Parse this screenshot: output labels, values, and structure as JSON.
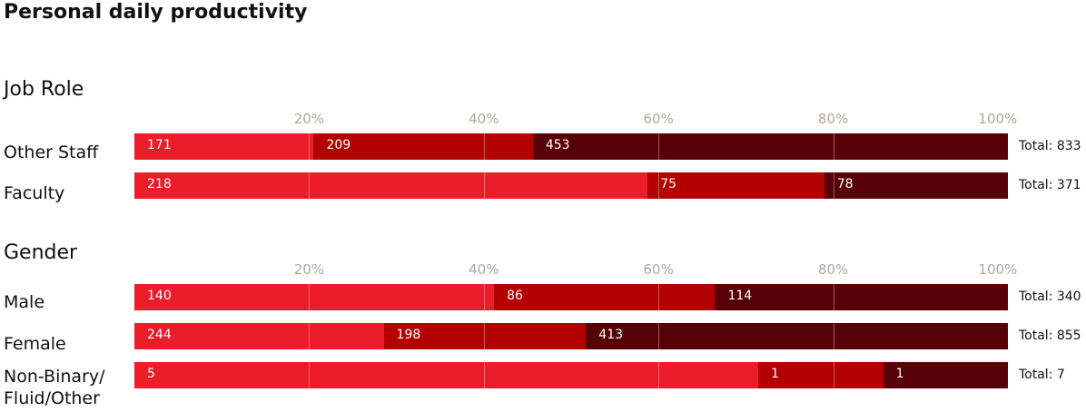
{
  "chart_data": {
    "type": "bar",
    "orientation": "horizontal",
    "stacked": true,
    "normalized": true,
    "title": "Personal daily productivity",
    "xlim": [
      0,
      100
    ],
    "x_ticks": [
      "20%",
      "40%",
      "60%",
      "80%",
      "100%"
    ],
    "grid": true,
    "colors": [
      "#ed1c2a",
      "#b30000",
      "#570005"
    ],
    "groups": [
      {
        "title": "Job Role",
        "rows": [
          {
            "label": "Other Staff",
            "values": [
              171,
              209,
              453
            ],
            "total": "Total: 833"
          },
          {
            "label": "Faculty",
            "values": [
              218,
              75,
              78
            ],
            "total": "Total: 371"
          }
        ]
      },
      {
        "title": "Gender",
        "rows": [
          {
            "label": "Male",
            "values": [
              140,
              86,
              114
            ],
            "total": "Total: 340"
          },
          {
            "label": "Female",
            "values": [
              244,
              198,
              413
            ],
            "total": "Total: 855"
          },
          {
            "label": "Non-Binary/ Fluid/Other",
            "values": [
              5,
              1,
              1
            ],
            "total": "Total: 7"
          }
        ]
      }
    ]
  }
}
